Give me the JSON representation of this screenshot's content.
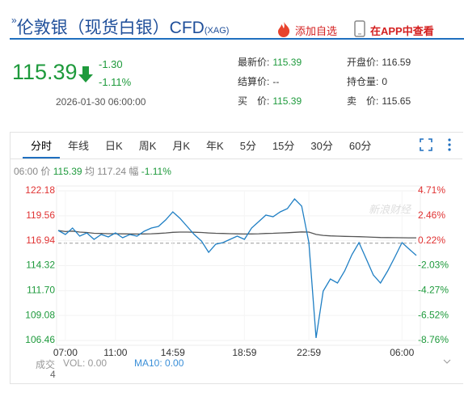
{
  "header": {
    "arrow": "»",
    "title": "伦敦银（现货白银）CFD",
    "code": "(XAG)",
    "add": "添加自选",
    "app": "在APP中查看"
  },
  "quote": {
    "price": "115.39",
    "change": "-1.30",
    "change_pct": "-1.11%",
    "time": "2026-01-30 06:00:00"
  },
  "stats": [
    [
      {
        "label": "最新价:",
        "value": "115.39"
      },
      {
        "label": "开盘价:",
        "value": "116.59"
      }
    ],
    [
      {
        "label": "结算价:",
        "value": "--"
      },
      {
        "label": "持仓量:",
        "value": "0"
      }
    ],
    [
      {
        "label": "买　价:",
        "value": "115.39"
      },
      {
        "label": "卖　价:",
        "value": "115.65"
      }
    ]
  ],
  "tabs": [
    "分时",
    "年线",
    "日K",
    "周K",
    "月K",
    "年K",
    "5分",
    "15分",
    "30分",
    "60分"
  ],
  "info": {
    "time": "06:00",
    "price_label": "价",
    "price": "115.39",
    "avg_label": "均",
    "avg": "117.24",
    "pct_label": "幅",
    "pct": "-1.11%"
  },
  "footer": {
    "vol_label": "成交",
    "vol_unit": "4",
    "vol": "VOL: 0.00",
    "ma10": "MA10: 0.00"
  },
  "chart_data": {
    "type": "line",
    "watermark": "新浪财经",
    "x": [
      0,
      1,
      2,
      3,
      4,
      5,
      6,
      7,
      8,
      9,
      10,
      11,
      12,
      13,
      14,
      15,
      16,
      17,
      18,
      19,
      20,
      21,
      22,
      23,
      24,
      25,
      26,
      27,
      28,
      29,
      30,
      31,
      32,
      33,
      34,
      35,
      36,
      37,
      38,
      39,
      40,
      41,
      42,
      43,
      44,
      45,
      46,
      47,
      48,
      49,
      50
    ],
    "xlim": [
      0,
      50
    ],
    "xticks": [
      {
        "value": 1,
        "label": "07:00"
      },
      {
        "value": 8,
        "label": "11:00"
      },
      {
        "value": 16,
        "label": "14:59"
      },
      {
        "value": 26,
        "label": "18:59"
      },
      {
        "value": 35,
        "label": "22:59"
      },
      {
        "value": 48,
        "label": "06:00"
      }
    ],
    "ylim": [
      106.46,
      122.18
    ],
    "yticks": [
      122.18,
      119.56,
      116.94,
      114.32,
      {
        "value": 111.7,
        "label": "111.70"
      },
      109.08,
      106.46
    ],
    "y2lim": [
      -8.76,
      4.71
    ],
    "y2ticks": [
      {
        "value": 4.71,
        "label": "4.71%"
      },
      {
        "value": 2.46,
        "label": "2.46%"
      },
      {
        "value": 0.22,
        "label": "0.22%"
      },
      {
        "value": -2.03,
        "label": "-2.03%"
      },
      {
        "value": -4.27,
        "label": "-4.27%"
      },
      {
        "value": -6.52,
        "label": "-6.52%"
      },
      {
        "value": -8.76,
        "label": "-8.76%"
      }
    ],
    "grid": true,
    "up_color": "#e03333",
    "down_color": "#1e9a3c",
    "series": [
      {
        "color": "#1f7fc4",
        "values": [
          118.02,
          117.59,
          118.27,
          117.42,
          117.76,
          117.08,
          117.59,
          117.34,
          117.76,
          117.25,
          117.59,
          117.42,
          117.93,
          118.27,
          118.44,
          119.12,
          119.97,
          119.29,
          118.44,
          117.59,
          116.91,
          115.72,
          116.57,
          116.74,
          117.08,
          117.42,
          117.08,
          118.27,
          118.95,
          119.63,
          119.46,
          119.97,
          120.31,
          121.33,
          120.57,
          116.74,
          106.72,
          111.64,
          112.92,
          112.49,
          113.77,
          115.47,
          116.74,
          115.04,
          113.34,
          112.49,
          113.77,
          115.21,
          116.74,
          116.06,
          115.39
        ]
      },
      {
        "color": "#555555",
        "values": [
          118.02,
          117.9,
          117.95,
          117.85,
          117.8,
          117.72,
          117.7,
          117.68,
          117.68,
          117.66,
          117.65,
          117.64,
          117.65,
          117.67,
          117.7,
          117.75,
          117.82,
          117.85,
          117.85,
          117.83,
          117.8,
          117.75,
          117.72,
          117.7,
          117.68,
          117.66,
          117.64,
          117.65,
          117.67,
          117.7,
          117.72,
          117.75,
          117.78,
          117.82,
          117.86,
          117.85,
          117.6,
          117.5,
          117.45,
          117.42,
          117.4,
          117.38,
          117.36,
          117.34,
          117.3,
          117.28,
          117.27,
          117.26,
          117.25,
          117.24,
          117.24
        ]
      }
    ]
  }
}
